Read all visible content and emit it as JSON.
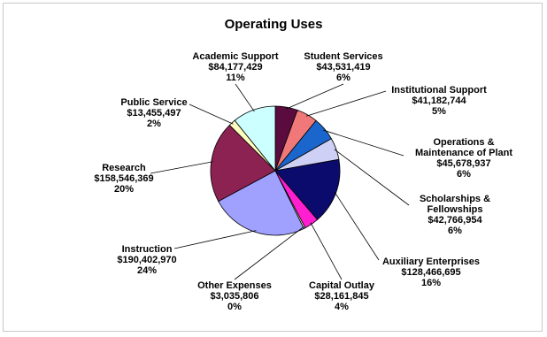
{
  "chart_data": {
    "type": "pie",
    "title": "Operating Uses",
    "slices": [
      {
        "label": [
          "Student Services"
        ],
        "amount": "$43,531,419",
        "percent": "6%",
        "value": 43531419,
        "color": "#5b0c3f"
      },
      {
        "label": [
          "Institutional Support"
        ],
        "amount": "$41,182,744",
        "percent": "5%",
        "value": 41182744,
        "color": "#f07878"
      },
      {
        "label": [
          "Operations &",
          "Maintenance of Plant"
        ],
        "amount": "$45,678,937",
        "percent": "6%",
        "value": 45678937,
        "color": "#1a66cc"
      },
      {
        "label": [
          "Scholarships &",
          "Fellowships"
        ],
        "amount": "$42,766,954",
        "percent": "6%",
        "value": 42766954,
        "color": "#cfd0f5"
      },
      {
        "label": [
          "Auxiliary Enterprises"
        ],
        "amount": "$128,466,695",
        "percent": "16%",
        "value": 128466695,
        "color": "#0b0b6e"
      },
      {
        "label": [
          "Capital Outlay"
        ],
        "amount": "$28,161,845",
        "percent": "4%",
        "value": 28161845,
        "color": "#ff1ed0"
      },
      {
        "label": [
          "Other Expenses"
        ],
        "amount": "$3,035,806",
        "percent": "0%",
        "value": 3035806,
        "color": "#fff8c8"
      },
      {
        "label": [
          "Instruction"
        ],
        "amount": "$190,402,970",
        "percent": "24%",
        "value": 190402970,
        "color": "#a0a0ff"
      },
      {
        "label": [
          "Research"
        ],
        "amount": "$158,546,369",
        "percent": "20%",
        "value": 158546369,
        "color": "#8b2252"
      },
      {
        "label": [
          "Public Service"
        ],
        "amount": "$13,455,497",
        "percent": "2%",
        "value": 13455497,
        "color": "#ffffc0"
      },
      {
        "label": [
          "Academic Support"
        ],
        "amount": "$84,177,429",
        "percent": "11%",
        "value": 84177429,
        "color": "#ccffff"
      }
    ]
  }
}
